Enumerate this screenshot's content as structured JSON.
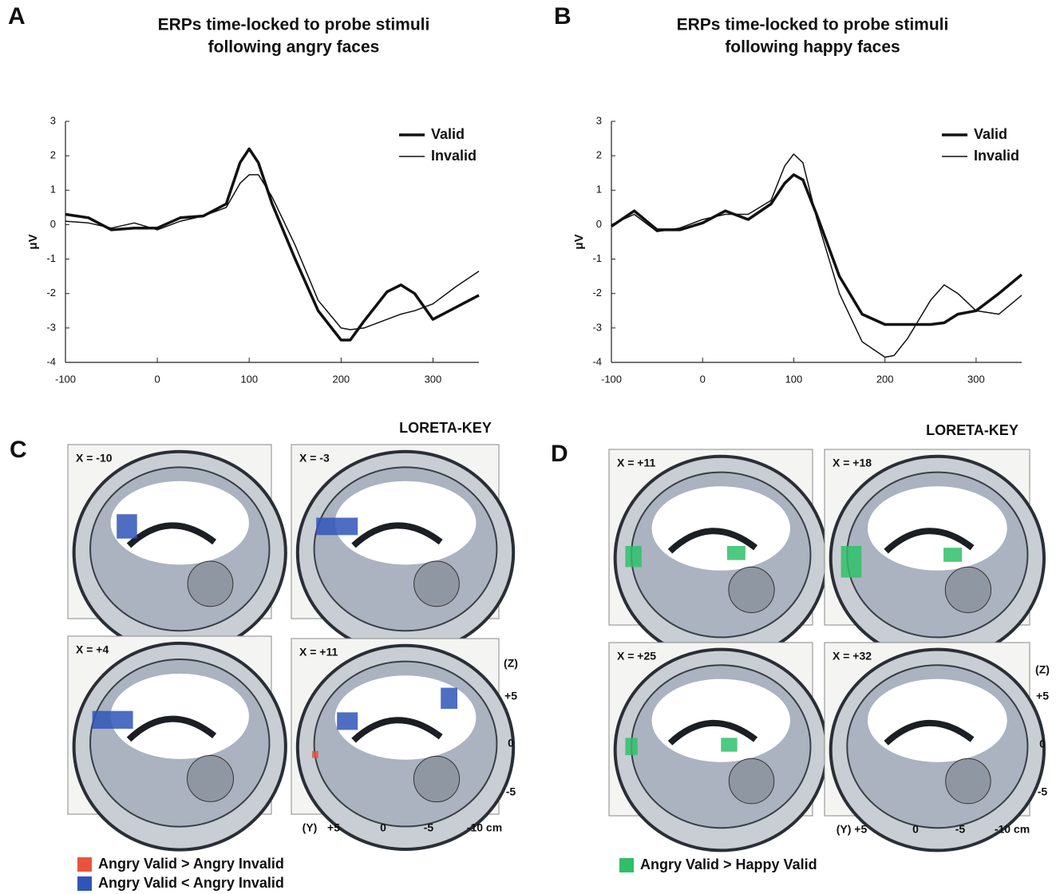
{
  "chart_data": [
    {
      "type": "line",
      "panel": "A",
      "title": [
        "ERPs time-locked to probe stimuli",
        "following angry faces"
      ],
      "y_label": "μV",
      "x": [
        -100,
        -75,
        -50,
        -25,
        0,
        25,
        50,
        75,
        90,
        100,
        110,
        125,
        150,
        175,
        200,
        210,
        225,
        250,
        265,
        280,
        300,
        325,
        350
      ],
      "series": [
        {
          "name": "Valid",
          "color": "#111111",
          "line_width": 3.5,
          "values": [
            0.3,
            0.2,
            -0.15,
            -0.1,
            -0.1,
            0.2,
            0.25,
            0.6,
            1.8,
            2.2,
            1.8,
            0.6,
            -1.0,
            -2.5,
            -3.35,
            -3.35,
            -2.8,
            -1.95,
            -1.75,
            -2.0,
            -2.75,
            -2.4,
            -2.05
          ]
        },
        {
          "name": "Invalid",
          "color": "#111111",
          "line_width": 1.5,
          "values": [
            0.1,
            0.05,
            -0.1,
            0.05,
            -0.15,
            0.1,
            0.25,
            0.5,
            1.2,
            1.45,
            1.45,
            0.8,
            -0.6,
            -2.2,
            -3.0,
            -3.05,
            -3.0,
            -2.75,
            -2.6,
            -2.5,
            -2.3,
            -1.8,
            -1.35
          ]
        }
      ],
      "xlim": [
        -100,
        350
      ],
      "xticks": [
        -100,
        0,
        100,
        200,
        300
      ],
      "ylim": [
        -4,
        3
      ],
      "yticks": [
        -4,
        -3,
        -2,
        -1,
        0,
        1,
        2,
        3
      ],
      "legend": "upper right"
    },
    {
      "type": "line",
      "panel": "B",
      "title": [
        "ERPs time-locked to probe stimuli",
        "following happy faces"
      ],
      "y_label": "μV",
      "x": [
        -100,
        -75,
        -50,
        -25,
        0,
        25,
        50,
        75,
        90,
        100,
        110,
        125,
        150,
        175,
        200,
        210,
        225,
        250,
        265,
        280,
        300,
        325,
        350
      ],
      "series": [
        {
          "name": "Valid",
          "color": "#111111",
          "line_width": 3.5,
          "values": [
            -0.05,
            0.4,
            -0.15,
            -0.15,
            0.05,
            0.4,
            0.15,
            0.6,
            1.2,
            1.45,
            1.3,
            0.3,
            -1.5,
            -2.6,
            -2.9,
            -2.9,
            -2.9,
            -2.9,
            -2.85,
            -2.6,
            -2.5,
            -2.0,
            -1.45
          ]
        },
        {
          "name": "Invalid",
          "color": "#111111",
          "line_width": 1.5,
          "values": [
            0.0,
            0.3,
            -0.2,
            -0.1,
            0.15,
            0.3,
            0.3,
            0.7,
            1.7,
            2.05,
            1.8,
            0.2,
            -2.0,
            -3.4,
            -3.85,
            -3.8,
            -3.3,
            -2.2,
            -1.75,
            -2.0,
            -2.5,
            -2.6,
            -2.05
          ]
        }
      ],
      "xlim": [
        -100,
        350
      ],
      "xticks": [
        -100,
        0,
        100,
        200,
        300
      ],
      "ylim": [
        -4,
        3
      ],
      "yticks": [
        -4,
        -3,
        -2,
        -1,
        0,
        1,
        2,
        3
      ],
      "legend": "upper right"
    }
  ],
  "panels": [
    {
      "letter": "C",
      "software": "LORETA-KEY",
      "slices": [
        "X = -10",
        "X = -3",
        "X = +4",
        "X = +11"
      ],
      "z_axis": [
        "(Z)",
        "+5",
        "0",
        "-5"
      ],
      "y_axis": [
        "(Y)",
        "+5",
        "0",
        "-5",
        "-10 cm"
      ],
      "legend": [
        {
          "label": "Angry Valid > Angry Invalid",
          "color": "#e8533f"
        },
        {
          "label": "Angry Valid < Angry Invalid",
          "color": "#2f55b8"
        }
      ]
    },
    {
      "letter": "D",
      "software": "LORETA-KEY",
      "slices": [
        "X = +11",
        "X = +18",
        "X = +25",
        "X = +32"
      ],
      "z_axis": [
        "(Z)",
        "+5",
        "0",
        "-5"
      ],
      "y_axis": [
        "(Y) +5",
        "0",
        "-5",
        "-10 cm"
      ],
      "legend": [
        {
          "label": "Angry Valid > Happy Valid",
          "color": "#2fbf6a"
        }
      ]
    }
  ]
}
